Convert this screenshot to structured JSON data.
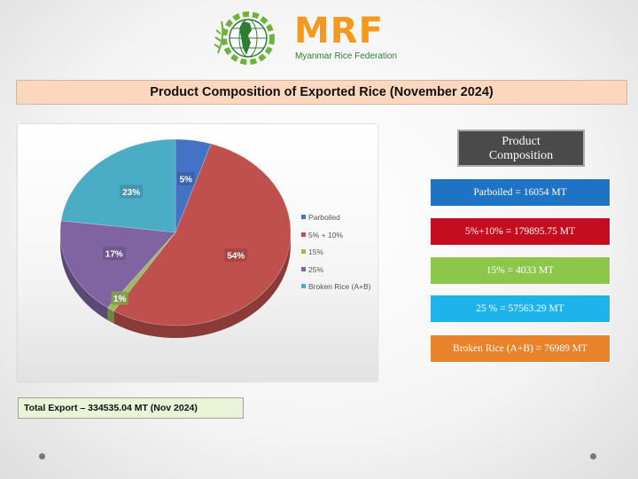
{
  "logo": {
    "name": "MRF",
    "subtitle": "Myanmar Rice Federation"
  },
  "title": "Product Composition of Exported Rice (November 2024)",
  "chart_data": {
    "type": "pie",
    "slices": [
      {
        "label": "Parboiled",
        "value": 5,
        "display": "5%",
        "color": "#4472c4"
      },
      {
        "label": "5% + 10%",
        "value": 54,
        "display": "54%",
        "color": "#c0504d"
      },
      {
        "label": "15%",
        "value": 1,
        "display": "1%",
        "color": "#9bbb59"
      },
      {
        "label": "25%",
        "value": 17,
        "display": "17%",
        "color": "#8064a2"
      },
      {
        "label": "Broken Rice (A+B)",
        "value": 23,
        "display": "23%",
        "color": "#4bacc6"
      }
    ],
    "legend_position": "right"
  },
  "product_composition": {
    "heading_line1": "Product",
    "heading_line2": "Composition",
    "items": [
      {
        "text": "Parboiled = 16054 MT",
        "color": "#1f73c4"
      },
      {
        "text": "5%+10%  = 179895.75 MT",
        "color": "#c40d1e"
      },
      {
        "text": "15%  = 4033 MT",
        "color": "#8cc64a"
      },
      {
        "text": "25 % = 57563.29 MT",
        "color": "#1fb3ec"
      },
      {
        "text": "Broken Rice (A+B) = 76989 MT",
        "color": "#e8822b"
      }
    ]
  },
  "total": "Total Export –  334535.04 MT (Nov 2024)"
}
